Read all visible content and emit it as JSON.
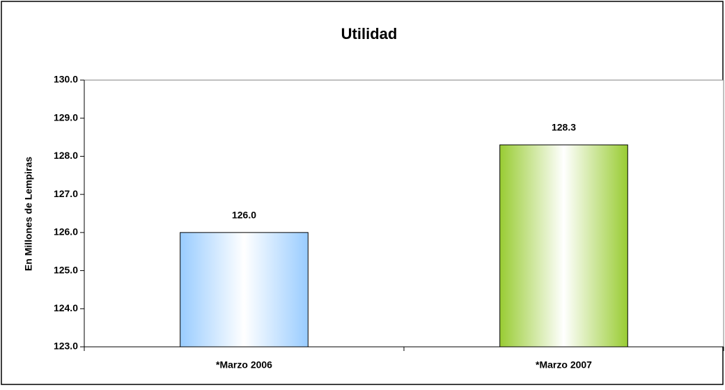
{
  "chart_data": {
    "type": "bar",
    "title": "Utilidad",
    "y_label": "En Millones de Lempiras",
    "categories": [
      "*Marzo 2006",
      "*Marzo 2007"
    ],
    "values": [
      126,
      128.3
    ],
    "value_labels": [
      "126.0",
      "128.3"
    ],
    "colors": [
      "#99ccff",
      "#99cc33"
    ],
    "ylim": [
      123,
      130
    ],
    "yticks": [
      {
        "value": 123,
        "label": "123.0"
      },
      {
        "value": 124,
        "label": "124.0"
      },
      {
        "value": 125,
        "label": "125.0"
      },
      {
        "value": 126,
        "label": "126.0"
      },
      {
        "value": 127,
        "label": "127.0"
      },
      {
        "value": 128,
        "label": "128.0"
      },
      {
        "value": 129,
        "label": "129.0"
      },
      {
        "value": 130,
        "label": "130.0"
      }
    ],
    "grid": false
  }
}
